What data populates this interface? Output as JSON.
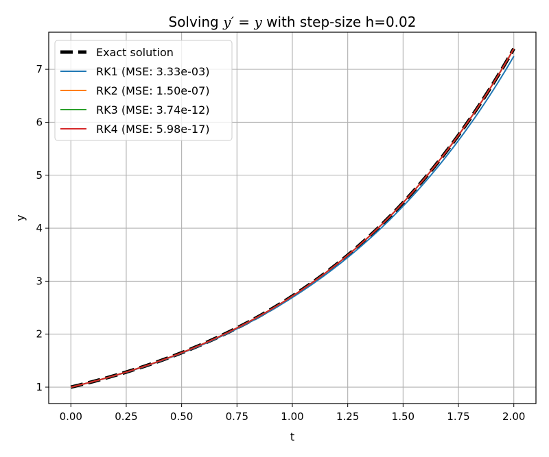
{
  "chart_data": {
    "type": "line",
    "title": {
      "prefix": "Solving ",
      "equation_lhs": "y′",
      "equation_op": " = ",
      "equation_rhs": "y",
      "suffix": " with step-size h=0.02"
    },
    "xlabel": "t",
    "ylabel": "y",
    "xlim": [
      -0.1,
      2.1
    ],
    "ylim": [
      0.69,
      7.7
    ],
    "xticks": [
      0.0,
      0.25,
      0.5,
      0.75,
      1.0,
      1.25,
      1.5,
      1.75,
      2.0
    ],
    "xtick_labels": [
      "0.00",
      "0.25",
      "0.50",
      "0.75",
      "1.00",
      "1.25",
      "1.50",
      "1.75",
      "2.00"
    ],
    "yticks": [
      1,
      2,
      3,
      4,
      5,
      6,
      7
    ],
    "ytick_labels": [
      "1",
      "2",
      "3",
      "4",
      "5",
      "6",
      "7"
    ],
    "grid": true,
    "legend_position": "top-left",
    "step_size": 0.02,
    "t_range": [
      0,
      2
    ],
    "series": [
      {
        "name": "Exact solution",
        "color": "#000000",
        "style": "dashed",
        "x": [
          0.0,
          0.25,
          0.5,
          0.75,
          1.0,
          1.25,
          1.5,
          1.75,
          2.0
        ],
        "y": [
          1.0,
          1.284,
          1.649,
          2.117,
          2.718,
          3.49,
          4.482,
          5.755,
          7.389
        ]
      },
      {
        "name": "RK1 (MSE: 3.33e-03)",
        "color": "#1f77b4",
        "style": "solid",
        "x": [
          0.0,
          0.25,
          0.5,
          0.75,
          1.0,
          1.25,
          1.5,
          1.75,
          2.0
        ],
        "y": [
          1.0,
          1.28,
          1.641,
          2.101,
          2.692,
          3.448,
          4.416,
          5.656,
          7.245
        ]
      },
      {
        "name": "RK2 (MSE: 1.50e-07)",
        "color": "#ff7f0e",
        "style": "solid",
        "x": [
          0.0,
          0.25,
          0.5,
          0.75,
          1.0,
          1.25,
          1.5,
          1.75,
          2.0
        ],
        "y": [
          1.0,
          1.284,
          1.649,
          2.117,
          2.718,
          3.49,
          4.482,
          5.755,
          7.389
        ]
      },
      {
        "name": "RK3 (MSE: 3.74e-12)",
        "color": "#2ca02c",
        "style": "solid",
        "x": [
          0.0,
          0.25,
          0.5,
          0.75,
          1.0,
          1.25,
          1.5,
          1.75,
          2.0
        ],
        "y": [
          1.0,
          1.284,
          1.649,
          2.117,
          2.718,
          3.49,
          4.482,
          5.755,
          7.389
        ]
      },
      {
        "name": "RK4 (MSE: 5.98e-17)",
        "color": "#d62728",
        "style": "solid",
        "x": [
          0.0,
          0.25,
          0.5,
          0.75,
          1.0,
          1.25,
          1.5,
          1.75,
          2.0
        ],
        "y": [
          1.0,
          1.284,
          1.649,
          2.117,
          2.718,
          3.49,
          4.482,
          5.755,
          7.389
        ]
      }
    ]
  }
}
